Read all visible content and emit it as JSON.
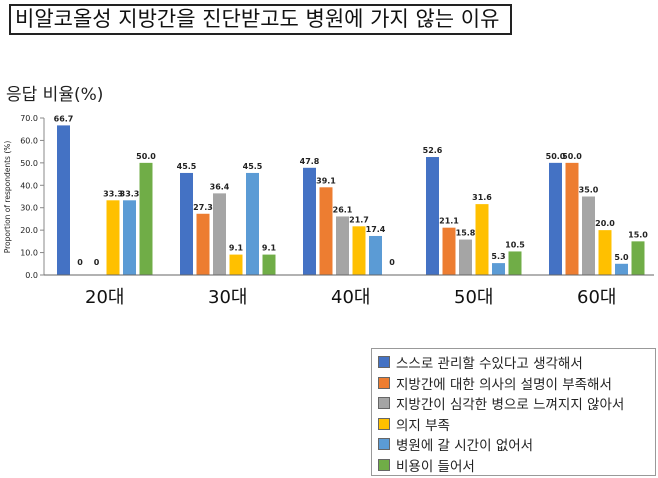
{
  "title": "비알코올성 지방간을 진단받고도 병원에 가지 않는 이유",
  "response_ratio_label": "응답 비율(%)",
  "chart_data": {
    "type": "bar",
    "title": "비알코올성 지방간을 진단받고도 병원에 가지 않는 이유",
    "ylabel": "Proportion of respondents (%)",
    "xlabel": "",
    "ylim": [
      0,
      70
    ],
    "yticks": [
      "0.0",
      "10.0",
      "20.0",
      "30.0",
      "40.0",
      "50.0",
      "60.0",
      "70.0"
    ],
    "categories": [
      "20대",
      "30대",
      "40대",
      "50대",
      "60대"
    ],
    "legend_position": "bottom-right",
    "grid": false,
    "series": [
      {
        "name": "스스로 관리할 수있다고 생각해서",
        "color": "#4472C4",
        "values": [
          66.7,
          45.5,
          47.8,
          52.6,
          50.0
        ],
        "labels": [
          "66.7",
          "45.5",
          "47.8",
          "52.6",
          "50.0"
        ]
      },
      {
        "name": "지방간에 대한 의사의 설명이 부족해서",
        "color": "#ED7D31",
        "values": [
          0,
          27.3,
          39.1,
          21.1,
          50.0
        ],
        "labels": [
          "0",
          "27.3",
          "39.1",
          "21.1",
          "50.0"
        ]
      },
      {
        "name": "지방간이 심각한 병으로 느껴지지 않아서",
        "color": "#A5A5A5",
        "values": [
          0,
          36.4,
          26.1,
          15.8,
          35.0
        ],
        "labels": [
          "0",
          "36.4",
          "26.1",
          "15.8",
          "35.0"
        ]
      },
      {
        "name": "의지 부족",
        "color": "#FFC000",
        "values": [
          33.3,
          9.1,
          21.7,
          31.6,
          20.0
        ],
        "labels": [
          "33.3",
          "9.1",
          "21.7",
          "31.6",
          "20.0"
        ]
      },
      {
        "name": "병원에 갈 시간이 없어서",
        "color": "#5B9BD5",
        "values": [
          33.3,
          45.5,
          17.4,
          5.3,
          5.0
        ],
        "labels": [
          "33.3",
          "45.5",
          "17.4",
          "5.3",
          "5.0"
        ]
      },
      {
        "name": "비용이 들어서",
        "color": "#70AD47",
        "values": [
          50.0,
          9.1,
          0,
          10.5,
          15.0
        ],
        "labels": [
          "50.0",
          "9.1",
          "0",
          "10.5",
          "15.0"
        ]
      }
    ]
  }
}
